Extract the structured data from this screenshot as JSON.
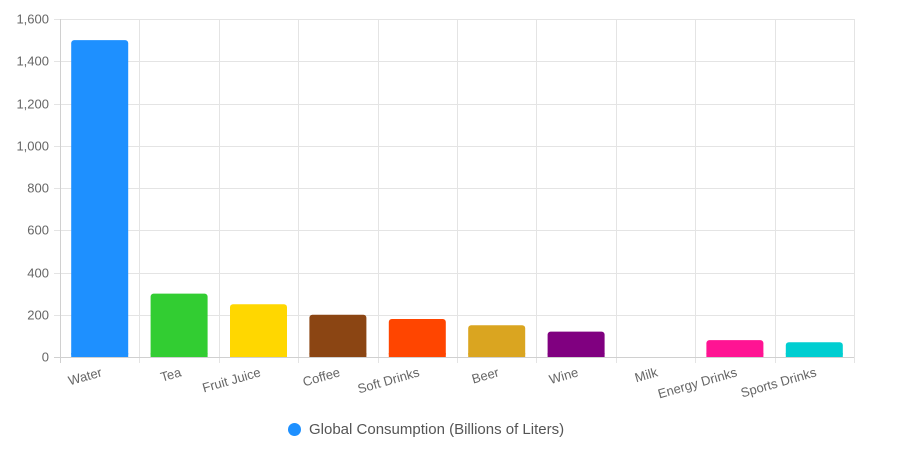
{
  "chart_data": {
    "type": "bar",
    "categories": [
      "Water",
      "Tea",
      "Fruit Juice",
      "Coffee",
      "Soft Drinks",
      "Beer",
      "Wine",
      "Milk",
      "Energy Drinks",
      "Sports Drinks"
    ],
    "series": [
      {
        "name": "Global Consumption (Billions of Liters)",
        "values": [
          1500,
          300,
          250,
          200,
          180,
          150,
          120,
          0,
          80,
          70
        ],
        "colors": [
          "#1e90ff",
          "#32cd32",
          "#ffd700",
          "#8b4513",
          "#ff4500",
          "#daa520",
          "#800080",
          "#cccccc",
          "#ff1493",
          "#00ced1"
        ]
      }
    ],
    "y_ticks": [
      "0",
      "200",
      "400",
      "600",
      "800",
      "1,000",
      "1,200",
      "1,400",
      "1,600"
    ],
    "ylim": [
      0,
      1600
    ],
    "grid": true,
    "legend_position": "bottom",
    "legend_marker_color": "#1e90ff"
  }
}
